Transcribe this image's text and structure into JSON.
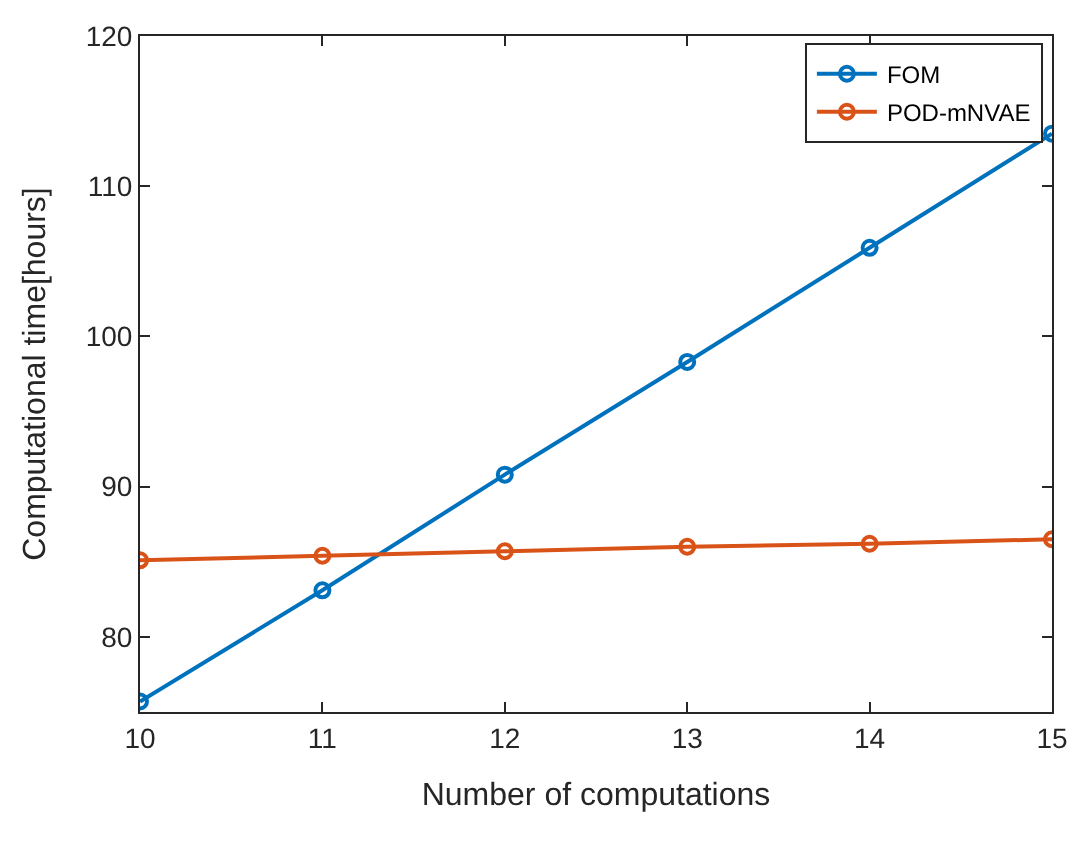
{
  "chart_data": {
    "type": "line",
    "xlabel": "Number of computations",
    "ylabel": "Computational time[hours]",
    "x": [
      10,
      11,
      12,
      13,
      14,
      15
    ],
    "series": [
      {
        "name": "FOM",
        "color": "#0072bd",
        "values": [
          75.7,
          83.1,
          90.8,
          98.3,
          105.9,
          113.5
        ]
      },
      {
        "name": "POD-mNVAE",
        "color": "#d95319",
        "values": [
          85.1,
          85.4,
          85.7,
          86.0,
          86.2,
          86.5
        ]
      }
    ],
    "xlim": [
      10,
      15
    ],
    "xticks": [
      10,
      11,
      12,
      13,
      14,
      15
    ],
    "ylim": [
      75,
      120
    ],
    "yticks": [
      80,
      90,
      100,
      110,
      120
    ],
    "legend": "top right",
    "marker": "circle",
    "line_style": "solid"
  }
}
